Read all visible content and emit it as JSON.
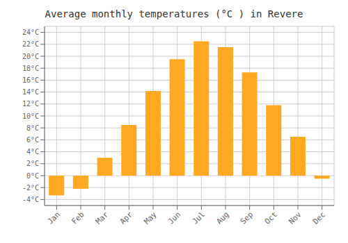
{
  "chart_data": {
    "type": "bar",
    "title": "Average monthly temperatures (°C ) in Revere",
    "categories": [
      "Jan",
      "Feb",
      "Mar",
      "Apr",
      "May",
      "Jun",
      "Jul",
      "Aug",
      "Sep",
      "Oct",
      "Nov",
      "Dec"
    ],
    "values": [
      -3.3,
      -2.2,
      3.0,
      8.5,
      14.2,
      19.5,
      22.5,
      21.5,
      17.3,
      11.8,
      6.5,
      -0.5
    ],
    "color": "#FFA822",
    "ylim": [
      -5,
      25
    ],
    "yticks": [
      {
        "value": -4,
        "label": "-4°C"
      },
      {
        "value": -2,
        "label": "-2°C"
      },
      {
        "value": 0,
        "label": "0°C"
      },
      {
        "value": 2,
        "label": "2°C"
      },
      {
        "value": 4,
        "label": "4°C"
      },
      {
        "value": 6,
        "label": "6°C"
      },
      {
        "value": 8,
        "label": "8°C"
      },
      {
        "value": 10,
        "label": "10°C"
      },
      {
        "value": 12,
        "label": "12°C"
      },
      {
        "value": 14,
        "label": "14°C"
      },
      {
        "value": 16,
        "label": "16°C"
      },
      {
        "value": 18,
        "label": "18°C"
      },
      {
        "value": 20,
        "label": "20°C"
      },
      {
        "value": 22,
        "label": "22°C"
      },
      {
        "value": 24,
        "label": "24°C"
      }
    ],
    "grid": true
  }
}
